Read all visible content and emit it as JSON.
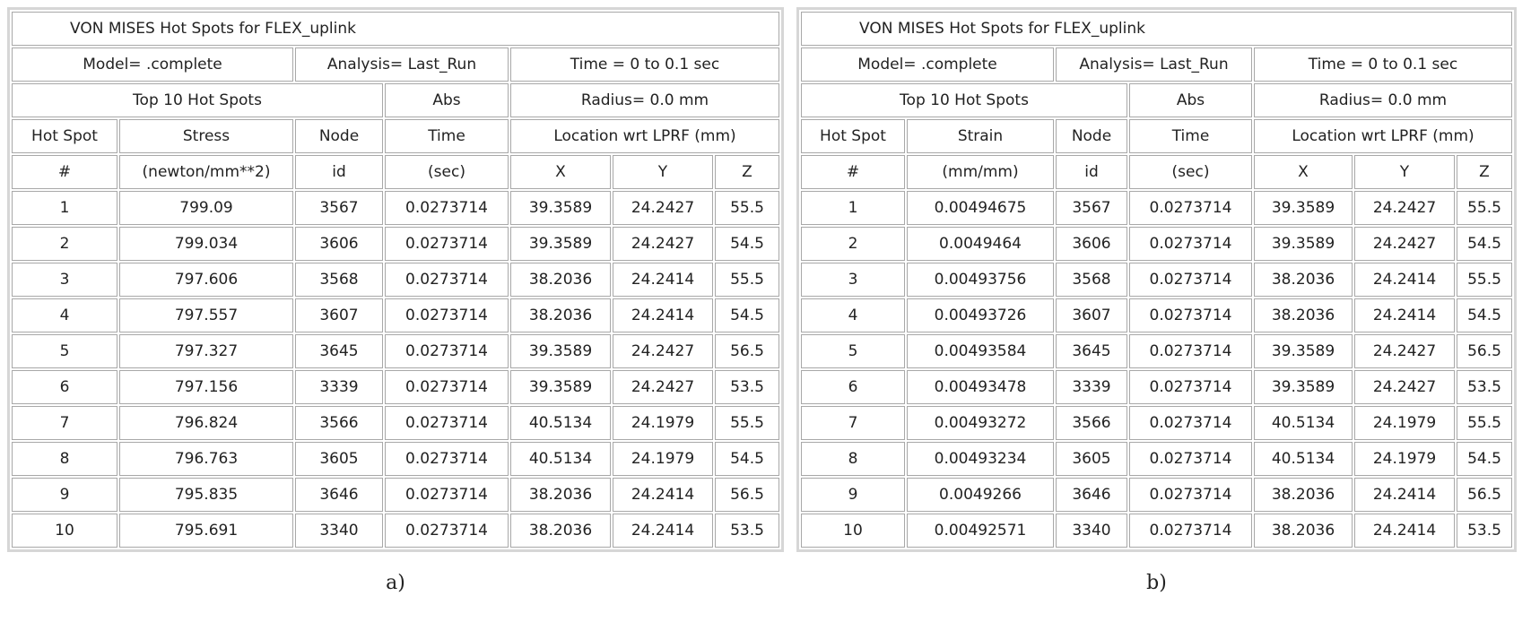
{
  "panels": [
    {
      "title": "VON MISES Hot Spots for FLEX_uplink",
      "model": "Model= .complete",
      "analysis": "Analysis= Last_Run",
      "time_range": "Time = 0 to 0.1 sec",
      "top": "Top 10 Hot Spots",
      "abs": "Abs",
      "radius": "Radius= 0.0 mm",
      "header": [
        "Hot Spot",
        "Stress",
        "Node",
        "Time",
        "Location wrt LPRF (mm)"
      ],
      "units": [
        "#",
        "(newton/mm**2)",
        "id",
        "(sec)",
        "X",
        "Y",
        "Z"
      ],
      "rows": [
        [
          1,
          799.09,
          3567,
          0.0273714,
          39.3589,
          24.2427,
          55.5
        ],
        [
          2,
          799.034,
          3606,
          0.0273714,
          39.3589,
          24.2427,
          54.5
        ],
        [
          3,
          797.606,
          3568,
          0.0273714,
          38.2036,
          24.2414,
          55.5
        ],
        [
          4,
          797.557,
          3607,
          0.0273714,
          38.2036,
          24.2414,
          54.5
        ],
        [
          5,
          797.327,
          3645,
          0.0273714,
          39.3589,
          24.2427,
          56.5
        ],
        [
          6,
          797.156,
          3339,
          0.0273714,
          39.3589,
          24.2427,
          53.5
        ],
        [
          7,
          796.824,
          3566,
          0.0273714,
          40.5134,
          24.1979,
          55.5
        ],
        [
          8,
          796.763,
          3605,
          0.0273714,
          40.5134,
          24.1979,
          54.5
        ],
        [
          9,
          795.835,
          3646,
          0.0273714,
          38.2036,
          24.2414,
          56.5
        ],
        [
          10,
          795.691,
          3340,
          0.0273714,
          38.2036,
          24.2414,
          53.5
        ]
      ],
      "caption": "a)"
    },
    {
      "title": "VON MISES Hot Spots for FLEX_uplink",
      "model": "Model= .complete",
      "analysis": "Analysis= Last_Run",
      "time_range": "Time = 0 to 0.1 sec",
      "top": "Top 10 Hot Spots",
      "abs": "Abs",
      "radius": "Radius= 0.0 mm",
      "header": [
        "Hot Spot",
        "Strain",
        "Node",
        "Time",
        "Location wrt LPRF (mm)"
      ],
      "units": [
        "#",
        "(mm/mm)",
        "id",
        "(sec)",
        "X",
        "Y",
        "Z"
      ],
      "rows": [
        [
          1,
          0.00494675,
          3567,
          0.0273714,
          39.3589,
          24.2427,
          55.5
        ],
        [
          2,
          0.0049464,
          3606,
          0.0273714,
          39.3589,
          24.2427,
          54.5
        ],
        [
          3,
          0.00493756,
          3568,
          0.0273714,
          38.2036,
          24.2414,
          55.5
        ],
        [
          4,
          0.00493726,
          3607,
          0.0273714,
          38.2036,
          24.2414,
          54.5
        ],
        [
          5,
          0.00493584,
          3645,
          0.0273714,
          39.3589,
          24.2427,
          56.5
        ],
        [
          6,
          0.00493478,
          3339,
          0.0273714,
          39.3589,
          24.2427,
          53.5
        ],
        [
          7,
          0.00493272,
          3566,
          0.0273714,
          40.5134,
          24.1979,
          55.5
        ],
        [
          8,
          0.00493234,
          3605,
          0.0273714,
          40.5134,
          24.1979,
          54.5
        ],
        [
          9,
          0.0049266,
          3646,
          0.0273714,
          38.2036,
          24.2414,
          56.5
        ],
        [
          10,
          0.00492571,
          3340,
          0.0273714,
          38.2036,
          24.2414,
          53.5
        ]
      ],
      "caption": "b)"
    }
  ]
}
